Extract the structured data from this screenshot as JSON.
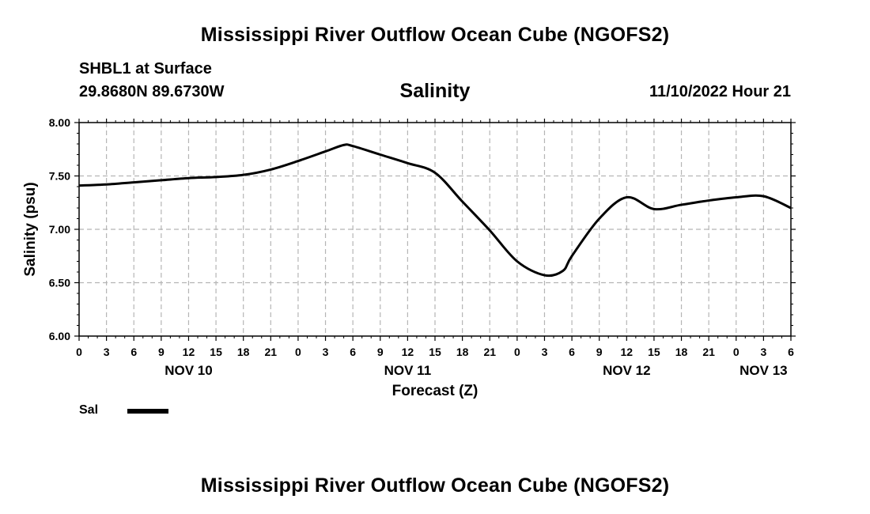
{
  "header": {
    "title": "Mississippi River Outflow Ocean Cube (NGOFS2)",
    "station": "SHBL1 at Surface",
    "coords": "29.8680N  89.6730W",
    "parameter": "Salinity",
    "datetime": "11/10/2022 Hour 21"
  },
  "footer": {
    "title": "Mississippi River Outflow Ocean Cube (NGOFS2)"
  },
  "legend": {
    "label": "Sal",
    "color": "#000000"
  },
  "chart_data": {
    "type": "line",
    "title": "Salinity",
    "xlabel": "Forecast (Z)",
    "ylabel": "Salinity (psu)",
    "xlim": [
      0,
      78
    ],
    "ylim": [
      6.0,
      8.0
    ],
    "x_tick_hours": [
      0,
      3,
      6,
      9,
      12,
      15,
      18,
      21,
      24,
      27,
      30,
      33,
      36,
      39,
      42,
      45,
      48,
      51,
      54,
      57,
      60,
      63,
      66,
      69,
      72,
      75,
      78
    ],
    "x_tick_labels": [
      "0",
      "3",
      "6",
      "9",
      "12",
      "15",
      "18",
      "21",
      "0",
      "3",
      "6",
      "9",
      "12",
      "15",
      "18",
      "21",
      "0",
      "3",
      "6",
      "9",
      "12",
      "15",
      "18",
      "21",
      "0",
      "3",
      "6"
    ],
    "x_date_labels": [
      {
        "hour": 12,
        "label": "NOV 10"
      },
      {
        "hour": 36,
        "label": "NOV 11"
      },
      {
        "hour": 60,
        "label": "NOV 12"
      },
      {
        "hour": 75,
        "label": "NOV 13"
      }
    ],
    "y_ticks": [
      6.0,
      6.5,
      7.0,
      7.5,
      8.0
    ],
    "y_tick_labels": [
      "6.00",
      "6.50",
      "7.00",
      "7.50",
      "8.00"
    ],
    "grid": true,
    "series": [
      {
        "name": "Sal",
        "color": "#000000",
        "x": [
          0,
          3,
          6,
          9,
          12,
          15,
          18,
          21,
          24,
          27,
          29,
          30,
          33,
          36,
          39,
          42,
          45,
          48,
          51,
          53,
          54,
          57,
          60,
          63,
          66,
          69,
          72,
          75,
          78
        ],
        "y": [
          7.41,
          7.42,
          7.44,
          7.46,
          7.48,
          7.49,
          7.51,
          7.56,
          7.64,
          7.73,
          7.79,
          7.78,
          7.7,
          7.62,
          7.53,
          7.26,
          6.99,
          6.7,
          6.57,
          6.61,
          6.75,
          7.1,
          7.3,
          7.19,
          7.23,
          7.27,
          7.3,
          7.31,
          7.2
        ]
      }
    ]
  }
}
